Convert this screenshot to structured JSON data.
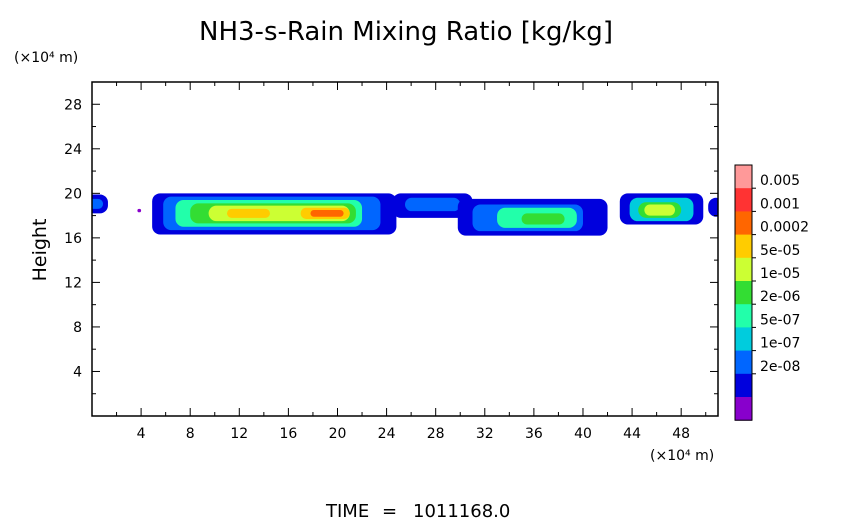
{
  "chart_data": {
    "type": "heatmap",
    "title": "NH3-s-Rain Mixing Ratio [kg/kg]",
    "ylabel": "Height",
    "xlabel": "",
    "x_unit": "(×10⁴ m)",
    "y_unit": "(×10⁴ m)",
    "xlim": [
      0,
      51
    ],
    "ylim": [
      0,
      30
    ],
    "x_ticks": [
      4,
      8,
      12,
      16,
      20,
      24,
      28,
      32,
      36,
      40,
      44,
      48
    ],
    "y_ticks": [
      4,
      8,
      12,
      16,
      20,
      24,
      28
    ],
    "x_tick_labels": [
      "4",
      "8",
      "12",
      "16",
      "20",
      "24",
      "28",
      "32",
      "36",
      "40",
      "44",
      "48"
    ],
    "y_tick_labels": [
      "4",
      "8",
      "12",
      "16",
      "20",
      "24",
      "28"
    ],
    "colorbar": {
      "labels": [
        "0.005",
        "0.001",
        "0.0002",
        "5e-05",
        "1e-05",
        "2e-06",
        "5e-07",
        "1e-07",
        "2e-08"
      ],
      "colors": [
        "#ff9999",
        "#ff3333",
        "#ff6600",
        "#ffcc00",
        "#ccff33",
        "#33dd33",
        "#22ffaa",
        "#00ccdd",
        "#0066ff",
        "#0000dd",
        "#8800cc"
      ]
    },
    "regions": [
      {
        "x": [
          -0.5,
          1.3
        ],
        "y": [
          18.2,
          19.9
        ],
        "level": 1
      },
      {
        "x": [
          -0.3,
          0.9
        ],
        "y": [
          18.6,
          19.5
        ],
        "level": 2
      },
      {
        "x": [
          3.7,
          4.0
        ],
        "y": [
          18.3,
          18.6
        ],
        "level": 0
      },
      {
        "x": [
          4.9,
          24.8
        ],
        "y": [
          16.3,
          20.0
        ],
        "level": 1
      },
      {
        "x": [
          5.8,
          23.5
        ],
        "y": [
          16.7,
          19.7
        ],
        "level": 2
      },
      {
        "x": [
          6.8,
          22.0
        ],
        "y": [
          17.0,
          19.4
        ],
        "level": 4
      },
      {
        "x": [
          8.0,
          21.5
        ],
        "y": [
          17.3,
          19.1
        ],
        "level": 5
      },
      {
        "x": [
          9.5,
          21.0
        ],
        "y": [
          17.5,
          18.9
        ],
        "level": 6
      },
      {
        "x": [
          11.0,
          14.5
        ],
        "y": [
          17.8,
          18.6
        ],
        "level": 7
      },
      {
        "x": [
          17.0,
          21.0
        ],
        "y": [
          17.7,
          18.7
        ],
        "level": 7
      },
      {
        "x": [
          17.8,
          20.5
        ],
        "y": [
          17.9,
          18.5
        ],
        "level": 8
      },
      {
        "x": [
          24.5,
          31.0
        ],
        "y": [
          17.8,
          20.0
        ],
        "level": 1
      },
      {
        "x": [
          25.5,
          30.0
        ],
        "y": [
          18.4,
          19.6
        ],
        "level": 2
      },
      {
        "x": [
          29.8,
          42.0
        ],
        "y": [
          16.2,
          19.5
        ],
        "level": 1
      },
      {
        "x": [
          31.0,
          40.0
        ],
        "y": [
          16.6,
          19.0
        ],
        "level": 2
      },
      {
        "x": [
          33.0,
          39.5
        ],
        "y": [
          16.9,
          18.7
        ],
        "level": 4
      },
      {
        "x": [
          35.0,
          38.5
        ],
        "y": [
          17.2,
          18.2
        ],
        "level": 5
      },
      {
        "x": [
          43.0,
          49.8
        ],
        "y": [
          17.2,
          20.0
        ],
        "level": 1
      },
      {
        "x": [
          43.8,
          49.0
        ],
        "y": [
          17.5,
          19.6
        ],
        "level": 3
      },
      {
        "x": [
          44.5,
          48.0
        ],
        "y": [
          17.8,
          19.2
        ],
        "level": 5
      },
      {
        "x": [
          45.0,
          47.5
        ],
        "y": [
          18.0,
          19.0
        ],
        "level": 6
      },
      {
        "x": [
          50.2,
          51.5
        ],
        "y": [
          17.9,
          19.6
        ],
        "level": 1
      }
    ]
  },
  "footer": {
    "time_label": "TIME",
    "time_sep": "=",
    "time_value": "1011168.0"
  }
}
